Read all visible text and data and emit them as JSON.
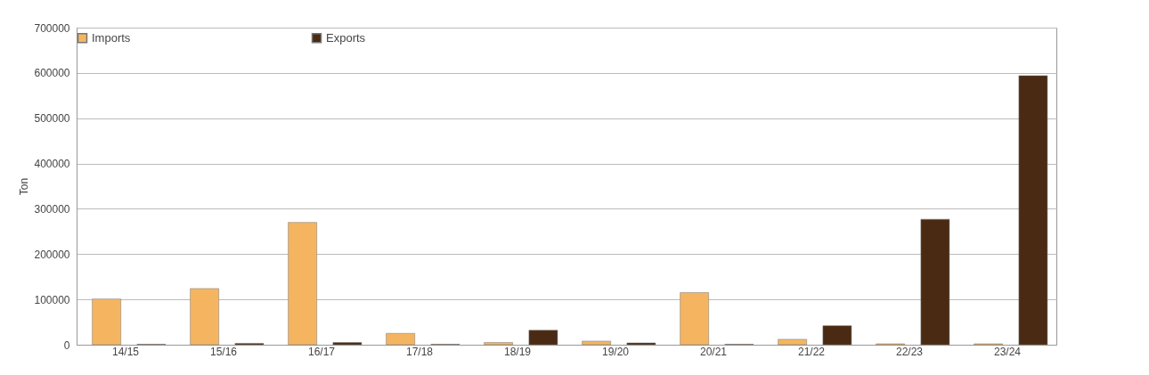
{
  "chart_data": {
    "type": "bar",
    "ylabel": "Ton",
    "categories": [
      "14/15",
      "15/16",
      "16/17",
      "17/18",
      "18/19",
      "19/20",
      "20/21",
      "21/22",
      "22/23",
      "23/24"
    ],
    "series": [
      {
        "name": "Imports",
        "color": "#f5b560",
        "values": [
          101000,
          124000,
          270000,
          25000,
          5000,
          8000,
          115000,
          12000,
          2000,
          2000
        ]
      },
      {
        "name": "Exports",
        "color": "#4a2a12",
        "values": [
          1000,
          3000,
          5000,
          1000,
          32000,
          4000,
          1000,
          42000,
          277000,
          594000
        ]
      }
    ],
    "ylim": [
      0,
      700000
    ],
    "yticks": [
      0,
      100000,
      200000,
      300000,
      400000,
      500000,
      600000,
      700000
    ],
    "grid": "y",
    "legend": "top"
  }
}
